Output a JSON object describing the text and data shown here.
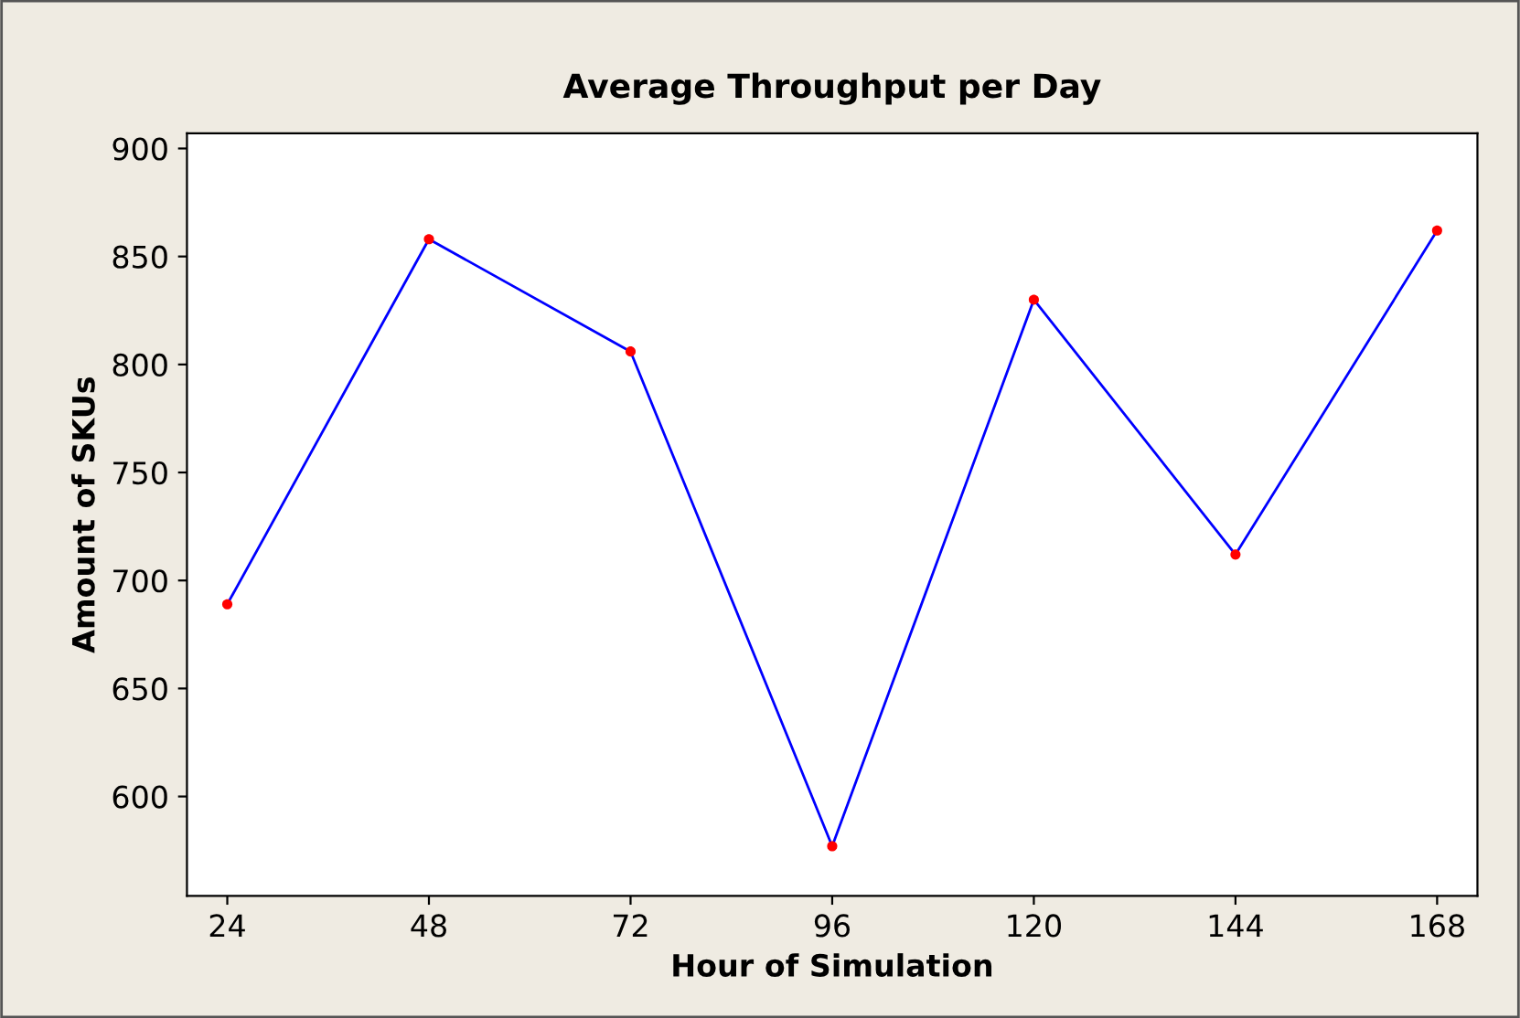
{
  "chart_data": {
    "type": "line",
    "title": "Average Throughput per Day",
    "xlabel": "Hour of Simulation",
    "ylabel": "Amount of SKUs",
    "x": [
      24,
      48,
      72,
      96,
      120,
      144,
      168
    ],
    "series": [
      {
        "color": "#0000ff",
        "colors": [
          "#ff0000",
          "#ff0000",
          "#ff0000",
          "#ff0000",
          "#ff0000",
          "#ff0000",
          "#ff0000"
        ],
        "values": [
          689,
          858,
          806,
          577,
          830,
          712,
          862
        ]
      }
    ],
    "marker": "circle",
    "line_style": "solid",
    "grid": false,
    "legend": false,
    "xlim": [
      19.2,
      172.8
    ],
    "xticks": [
      24,
      48,
      72,
      96,
      120,
      144,
      168
    ],
    "ylim": [
      554,
      907
    ],
    "yticks": [
      600,
      650,
      700,
      750,
      800,
      850,
      900
    ]
  }
}
